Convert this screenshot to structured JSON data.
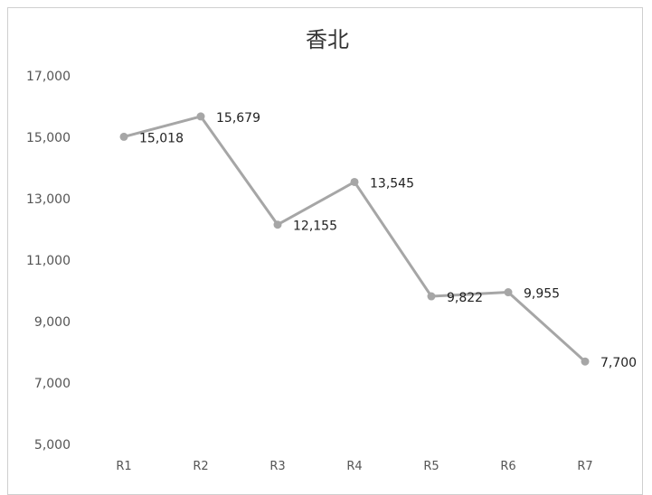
{
  "chart_data": {
    "type": "line",
    "title": "香北",
    "categories": [
      "R1",
      "R2",
      "R3",
      "R4",
      "R5",
      "R6",
      "R7"
    ],
    "values": [
      15018,
      15679,
      12155,
      13545,
      9822,
      9955,
      7700
    ],
    "data_labels": [
      "15,018",
      "15,679",
      "12,155",
      "13,545",
      "9,822",
      "9,955",
      "7,700"
    ],
    "yticks": [
      "5,000",
      "7,000",
      "9,000",
      "11,000",
      "13,000",
      "15,000",
      "17,000"
    ],
    "ylim": [
      5000,
      17000
    ],
    "xlabel": "",
    "ylabel": "",
    "grid": false,
    "legend": "none",
    "series_color": "#a6a6a6"
  }
}
